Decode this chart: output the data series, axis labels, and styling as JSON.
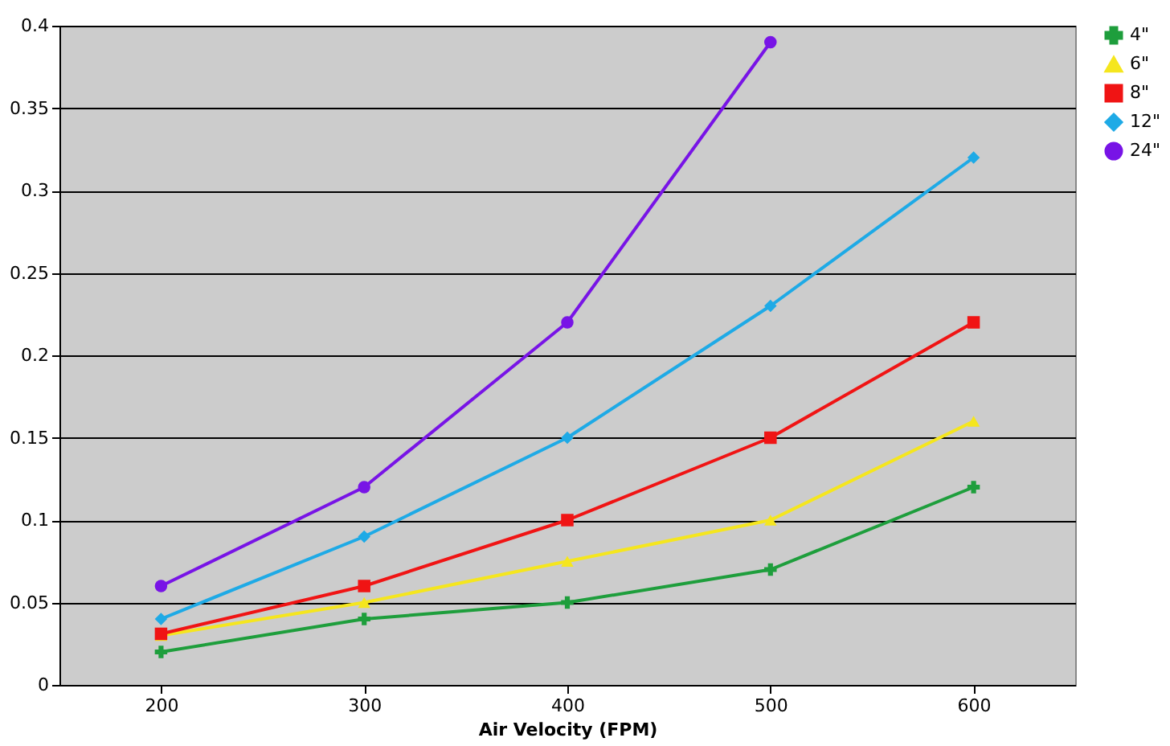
{
  "chart_data": {
    "type": "line",
    "xlabel": "Air Velocity (FPM)",
    "categories": [
      "200",
      "300",
      "400",
      "500",
      "600"
    ],
    "ylim": [
      0,
      0.4
    ],
    "yticks": [
      0,
      0.05,
      0.1,
      0.15,
      0.2,
      0.25,
      0.3,
      0.35,
      0.4
    ],
    "grid": "y",
    "legend": "right",
    "series": [
      {
        "name": "4\"",
        "color": "#1e9e3c",
        "marker": "cross",
        "values": [
          0.02,
          0.04,
          0.05,
          0.07,
          0.12
        ]
      },
      {
        "name": "6\"",
        "color": "#f5e61e",
        "marker": "triangle",
        "values": [
          0.03,
          0.05,
          0.075,
          0.1,
          0.16
        ]
      },
      {
        "name": "8\"",
        "color": "#f01414",
        "marker": "square",
        "values": [
          0.031,
          0.06,
          0.1,
          0.15,
          0.22
        ]
      },
      {
        "name": "12\"",
        "color": "#1eaae6",
        "marker": "diamond",
        "values": [
          0.04,
          0.09,
          0.15,
          0.23,
          0.32
        ]
      },
      {
        "name": "24\"",
        "color": "#7814e6",
        "marker": "circle",
        "values": [
          0.06,
          0.12,
          0.22,
          0.39,
          null
        ]
      }
    ]
  }
}
